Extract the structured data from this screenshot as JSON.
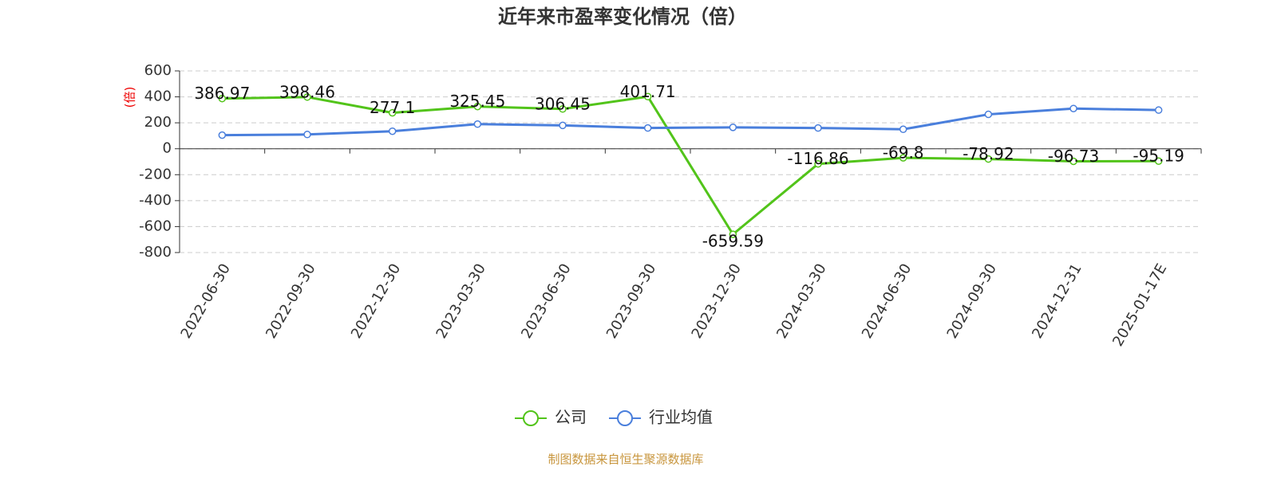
{
  "chart_data": {
    "type": "line",
    "title": "近年来市盈率变化情况（倍）",
    "y_label": "(倍)",
    "source": "制图数据来自恒生聚源数据库",
    "categories": [
      "2022-06-30",
      "2022-09-30",
      "2022-12-30",
      "2023-03-30",
      "2023-06-30",
      "2023-09-30",
      "2023-12-30",
      "2024-03-30",
      "2024-06-30",
      "2024-09-30",
      "2024-12-31",
      "2025-01-17E"
    ],
    "series": [
      {
        "name": "公司",
        "color": "#52c41a",
        "values": [
          386.97,
          398.46,
          277.1,
          325.45,
          306.45,
          401.71,
          -659.59,
          -116.86,
          -69.8,
          -78.92,
          -96.73,
          -95.19
        ],
        "show_labels": true
      },
      {
        "name": "行业均值",
        "color": "#4a7fdc",
        "values": [
          105,
          110,
          135,
          190,
          180,
          160,
          165,
          160,
          150,
          265,
          310,
          298
        ],
        "show_labels": false
      }
    ],
    "ylim": [
      -800,
      600
    ],
    "yticks": [
      -800,
      -600,
      -400,
      -200,
      0,
      200,
      400,
      600
    ],
    "grid": true
  }
}
